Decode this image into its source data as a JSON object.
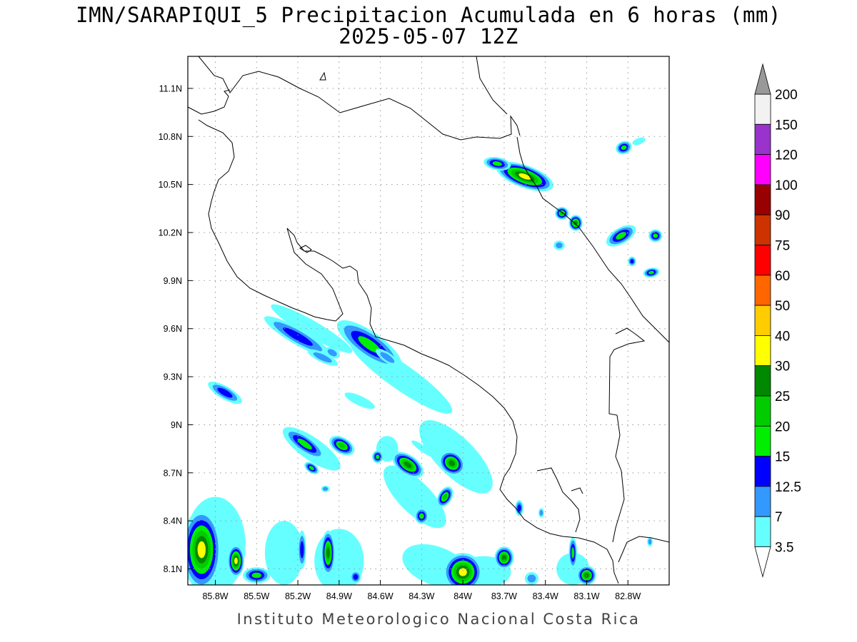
{
  "title_line1": "IMN/SARAPIQUI_5 Precipitacion Acumulada en 6 horas (mm)",
  "title_line2": "2025-05-07 12Z",
  "footer": "Instituto Meteorologico Nacional Costa Rica",
  "map": {
    "lon_range": [
      -86.0,
      -82.5
    ],
    "lat_range": [
      8.0,
      11.3
    ],
    "lon_ticks": [
      "85.8W",
      "85.5W",
      "85.2W",
      "84.9W",
      "84.6W",
      "84.3W",
      "84W",
      "83.7W",
      "83.4W",
      "83.1W",
      "82.8W"
    ],
    "lat_ticks": [
      "11.1N",
      "10.8N",
      "10.5N",
      "10.2N",
      "9.9N",
      "9.6N",
      "9.3N",
      "9N",
      "8.7N",
      "8.4N",
      "8.1N"
    ],
    "grid": "dotted"
  },
  "colorbar": {
    "levels": [
      "3.5",
      "7",
      "12.5",
      "15",
      "20",
      "25",
      "30",
      "40",
      "50",
      "60",
      "75",
      "90",
      "100",
      "120",
      "150",
      "200"
    ],
    "colors": [
      "#ffffff",
      "#66ffff",
      "#3399ff",
      "#0000ff",
      "#00ee00",
      "#00cc00",
      "#008800",
      "#ffff00",
      "#ffcc00",
      "#ff6600",
      "#ff0000",
      "#cc3300",
      "#990000",
      "#ff00ff",
      "#9933cc",
      "#f2f2f2",
      "#999999"
    ]
  },
  "precip_cells": [
    {
      "lon": -83.55,
      "lat": 10.55,
      "rx": 0.22,
      "ry": 0.07,
      "rot": 20,
      "max": 35
    },
    {
      "lon": -83.75,
      "lat": 10.63,
      "rx": 0.1,
      "ry": 0.04,
      "rot": 10,
      "max": 15
    },
    {
      "lon": -83.28,
      "lat": 10.32,
      "rx": 0.05,
      "ry": 0.04,
      "rot": 0,
      "max": 20
    },
    {
      "lon": -83.18,
      "lat": 10.26,
      "rx": 0.05,
      "ry": 0.05,
      "rot": 0,
      "max": 25
    },
    {
      "lon": -82.83,
      "lat": 10.73,
      "rx": 0.06,
      "ry": 0.04,
      "rot": -20,
      "max": 15
    },
    {
      "lon": -82.72,
      "lat": 10.77,
      "rx": 0.05,
      "ry": 0.02,
      "rot": -20,
      "max": 3.5
    },
    {
      "lon": -82.85,
      "lat": 10.18,
      "rx": 0.12,
      "ry": 0.05,
      "rot": -30,
      "max": 15
    },
    {
      "lon": -82.6,
      "lat": 10.18,
      "rx": 0.05,
      "ry": 0.04,
      "rot": 0,
      "max": 15
    },
    {
      "lon": -82.63,
      "lat": 9.95,
      "rx": 0.06,
      "ry": 0.03,
      "rot": -10,
      "max": 15
    },
    {
      "lon": -82.77,
      "lat": 10.02,
      "rx": 0.03,
      "ry": 0.03,
      "rot": 0,
      "max": 12.5
    },
    {
      "lon": -83.3,
      "lat": 10.12,
      "rx": 0.04,
      "ry": 0.03,
      "rot": 0,
      "max": 7
    },
    {
      "lon": -84.68,
      "lat": 9.5,
      "rx": 0.28,
      "ry": 0.08,
      "rot": 35,
      "max": 15
    },
    {
      "lon": -85.2,
      "lat": 9.55,
      "rx": 0.28,
      "ry": 0.05,
      "rot": 30,
      "max": 12.5
    },
    {
      "lon": -85.02,
      "lat": 9.42,
      "rx": 0.12,
      "ry": 0.03,
      "rot": 25,
      "max": 7
    },
    {
      "lon": -84.95,
      "lat": 9.45,
      "rx": 0.06,
      "ry": 0.03,
      "rot": 30,
      "max": 7
    },
    {
      "lon": -84.55,
      "lat": 9.42,
      "rx": 0.1,
      "ry": 0.03,
      "rot": 35,
      "max": 7
    },
    {
      "lon": -85.73,
      "lat": 9.2,
      "rx": 0.14,
      "ry": 0.04,
      "rot": 30,
      "max": 12.5
    },
    {
      "lon": -85.15,
      "lat": 8.88,
      "rx": 0.18,
      "ry": 0.05,
      "rot": 35,
      "max": 15
    },
    {
      "lon": -84.88,
      "lat": 8.87,
      "rx": 0.1,
      "ry": 0.05,
      "rot": 30,
      "max": 20
    },
    {
      "lon": -84.62,
      "lat": 8.8,
      "rx": 0.04,
      "ry": 0.04,
      "rot": 0,
      "max": 15
    },
    {
      "lon": -84.4,
      "lat": 8.75,
      "rx": 0.13,
      "ry": 0.06,
      "rot": 35,
      "max": 25
    },
    {
      "lon": -84.08,
      "lat": 8.76,
      "rx": 0.1,
      "ry": 0.07,
      "rot": 40,
      "max": 25
    },
    {
      "lon": -84.13,
      "lat": 8.55,
      "rx": 0.05,
      "ry": 0.07,
      "rot": 30,
      "max": 20
    },
    {
      "lon": -84.3,
      "lat": 8.43,
      "rx": 0.05,
      "ry": 0.05,
      "rot": 0,
      "max": 15
    },
    {
      "lon": -84.29,
      "lat": 8.85,
      "rx": 0.1,
      "ry": 0.02,
      "rot": 35,
      "max": 3.5
    },
    {
      "lon": -85.1,
      "lat": 8.73,
      "rx": 0.06,
      "ry": 0.03,
      "rot": 35,
      "max": 15
    },
    {
      "lon": -85.0,
      "lat": 8.6,
      "rx": 0.03,
      "ry": 0.02,
      "rot": 0,
      "max": 7
    },
    {
      "lon": -85.9,
      "lat": 8.22,
      "rx": 0.14,
      "ry": 0.25,
      "rot": 0,
      "max": 35
    },
    {
      "lon": -85.65,
      "lat": 8.15,
      "rx": 0.06,
      "ry": 0.1,
      "rot": 0,
      "max": 30
    },
    {
      "lon": -85.5,
      "lat": 8.06,
      "rx": 0.1,
      "ry": 0.05,
      "rot": 0,
      "max": 15
    },
    {
      "lon": -85.17,
      "lat": 8.22,
      "rx": 0.03,
      "ry": 0.12,
      "rot": 0,
      "max": 12.5
    },
    {
      "lon": -84.98,
      "lat": 8.2,
      "rx": 0.05,
      "ry": 0.14,
      "rot": 0,
      "max": 25
    },
    {
      "lon": -84.78,
      "lat": 8.05,
      "rx": 0.04,
      "ry": 0.04,
      "rot": 0,
      "max": 12.5
    },
    {
      "lon": -84.0,
      "lat": 8.08,
      "rx": 0.14,
      "ry": 0.12,
      "rot": 20,
      "max": 35
    },
    {
      "lon": -83.7,
      "lat": 8.17,
      "rx": 0.07,
      "ry": 0.07,
      "rot": 0,
      "max": 25
    },
    {
      "lon": -83.5,
      "lat": 8.04,
      "rx": 0.05,
      "ry": 0.04,
      "rot": 0,
      "max": 7
    },
    {
      "lon": -83.1,
      "lat": 8.06,
      "rx": 0.07,
      "ry": 0.06,
      "rot": 0,
      "max": 25
    },
    {
      "lon": -83.2,
      "lat": 8.2,
      "rx": 0.03,
      "ry": 0.1,
      "rot": 0,
      "max": 15
    },
    {
      "lon": -83.59,
      "lat": 8.48,
      "rx": 0.03,
      "ry": 0.05,
      "rot": 0,
      "max": 12.5
    },
    {
      "lon": -83.43,
      "lat": 8.45,
      "rx": 0.02,
      "ry": 0.03,
      "rot": 0,
      "max": 7
    },
    {
      "lon": -82.64,
      "lat": 8.27,
      "rx": 0.02,
      "ry": 0.03,
      "rot": 0,
      "max": 7
    }
  ],
  "light_bands": [
    {
      "lon": -85.1,
      "lat": 9.6,
      "rx": 0.34,
      "ry": 0.05,
      "rot": 30
    },
    {
      "lon": -84.45,
      "lat": 9.3,
      "rx": 0.45,
      "ry": 0.08,
      "rot": 35
    },
    {
      "lon": -84.05,
      "lat": 8.8,
      "rx": 0.35,
      "ry": 0.12,
      "rot": 45
    },
    {
      "lon": -84.35,
      "lat": 8.55,
      "rx": 0.3,
      "ry": 0.1,
      "rot": 45
    },
    {
      "lon": -85.1,
      "lat": 8.85,
      "rx": 0.25,
      "ry": 0.07,
      "rot": 35
    },
    {
      "lon": -85.8,
      "lat": 8.25,
      "rx": 0.22,
      "ry": 0.3,
      "rot": 0
    },
    {
      "lon": -85.3,
      "lat": 8.2,
      "rx": 0.14,
      "ry": 0.2,
      "rot": 0
    },
    {
      "lon": -84.9,
      "lat": 8.15,
      "rx": 0.18,
      "ry": 0.2,
      "rot": 0
    },
    {
      "lon": -84.2,
      "lat": 8.12,
      "rx": 0.25,
      "ry": 0.12,
      "rot": 20
    },
    {
      "lon": -83.85,
      "lat": 8.08,
      "rx": 0.2,
      "ry": 0.1,
      "rot": 0
    },
    {
      "lon": -83.2,
      "lat": 8.1,
      "rx": 0.12,
      "ry": 0.1,
      "rot": 0
    },
    {
      "lon": -84.75,
      "lat": 9.15,
      "rx": 0.12,
      "ry": 0.03,
      "rot": 25
    },
    {
      "lon": -84.55,
      "lat": 8.85,
      "rx": 0.08,
      "ry": 0.08,
      "rot": 0
    }
  ]
}
